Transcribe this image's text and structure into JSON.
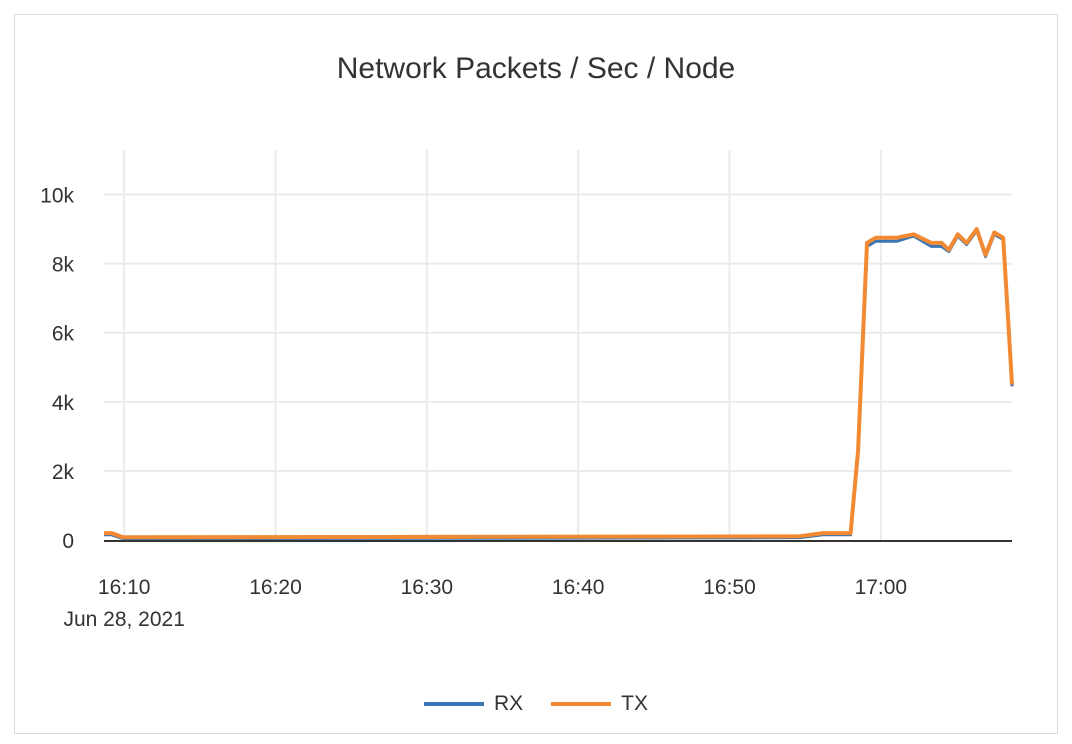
{
  "chart_data": {
    "type": "line",
    "title": "Network Packets / Sec / Node",
    "xlabel": "",
    "ylabel": "",
    "x_range": [
      "16:08:40",
      "17:08:40"
    ],
    "ylim": [
      0,
      11000
    ],
    "y_ticks": [
      0,
      2000,
      4000,
      6000,
      8000,
      10000
    ],
    "y_tick_labels": [
      "0",
      "2k",
      "4k",
      "6k",
      "8k",
      "10k"
    ],
    "x_ticks": [
      "16:10",
      "16:20",
      "16:30",
      "16:40",
      "16:50",
      "17:00"
    ],
    "x_tick_labels": [
      "16:10",
      "16:20",
      "16:30",
      "16:40",
      "16:50",
      "17:00"
    ],
    "x_date_label": "Jun 28, 2021",
    "grid": true,
    "legend_position": "bottom",
    "x": [
      "16:08:40",
      "16:09:10",
      "16:09:55",
      "16:30:00",
      "16:50:00",
      "16:54:40",
      "16:56:10",
      "16:58:00",
      "16:58:30",
      "16:59:05",
      "16:59:40",
      "17:01:05",
      "17:02:10",
      "17:03:20",
      "17:04:00",
      "17:04:30",
      "17:05:05",
      "17:05:40",
      "17:06:20",
      "17:06:55",
      "17:07:30",
      "17:08:05",
      "17:08:40"
    ],
    "series": [
      {
        "name": "RX",
        "color": "#3a76b3",
        "values": [
          150,
          150,
          40,
          50,
          60,
          70,
          150,
          150,
          2500,
          8500,
          8650,
          8650,
          8800,
          8500,
          8500,
          8350,
          8800,
          8550,
          8950,
          8200,
          8850,
          8700,
          4450
        ]
      },
      {
        "name": "TX",
        "color": "#f28a33",
        "values": [
          200,
          200,
          80,
          90,
          100,
          110,
          200,
          200,
          2600,
          8600,
          8750,
          8750,
          8850,
          8600,
          8600,
          8400,
          8850,
          8600,
          9000,
          8250,
          8900,
          8750,
          4500
        ]
      }
    ]
  }
}
